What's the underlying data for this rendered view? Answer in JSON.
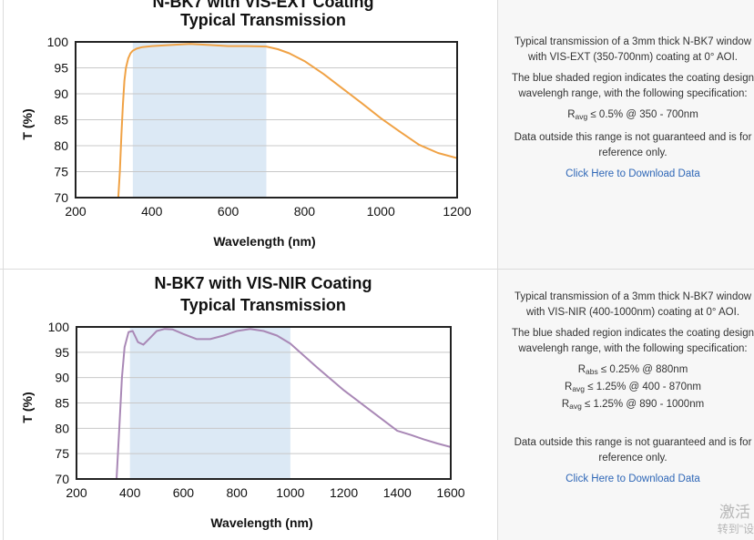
{
  "chart_data": [
    {
      "type": "line",
      "title_lines": [
        "N-BK7 with VIS-EXT Coating",
        "Typical Transmission"
      ],
      "xlabel": "Wavelength (nm)",
      "ylabel": "T (%)",
      "xlim": [
        200,
        1200
      ],
      "ylim": [
        70,
        100
      ],
      "xticks": [
        200,
        400,
        600,
        800,
        1000,
        1200
      ],
      "yticks": [
        70,
        75,
        80,
        85,
        90,
        95,
        100
      ],
      "shaded_range": [
        350,
        700
      ],
      "series": [
        {
          "name": "Transmission",
          "color": "#f0a245",
          "x": [
            312,
            316,
            320,
            324,
            328,
            332,
            338,
            344,
            350,
            360,
            375,
            400,
            450,
            500,
            550,
            600,
            650,
            700,
            730,
            760,
            800,
            850,
            900,
            950,
            1000,
            1050,
            1100,
            1150,
            1200
          ],
          "y": [
            70,
            75,
            82,
            88,
            92.5,
            95,
            96.8,
            97.8,
            98.3,
            98.7,
            99.0,
            99.2,
            99.4,
            99.6,
            99.4,
            99.2,
            99.2,
            99.1,
            98.6,
            97.8,
            96.3,
            93.8,
            91.0,
            88.2,
            85.3,
            82.7,
            80.2,
            78.6,
            77.6
          ]
        }
      ]
    },
    {
      "type": "line",
      "title_lines": [
        "N-BK7 with VIS-NIR Coating",
        "Typical Transmission"
      ],
      "xlabel": "Wavelength (nm)",
      "ylabel": "T (%)",
      "xlim": [
        200,
        1600
      ],
      "ylim": [
        70,
        100
      ],
      "xticks": [
        200,
        400,
        600,
        800,
        1000,
        1200,
        1400,
        1600
      ],
      "yticks": [
        70,
        75,
        80,
        85,
        90,
        95,
        100
      ],
      "shaded_range": [
        400,
        1000
      ],
      "series": [
        {
          "name": "Transmission",
          "color": "#a988b6",
          "x": [
            350,
            360,
            370,
            380,
            395,
            410,
            430,
            450,
            475,
            500,
            530,
            560,
            600,
            650,
            700,
            750,
            800,
            850,
            900,
            950,
            1000,
            1100,
            1200,
            1300,
            1400,
            1450,
            1500,
            1550,
            1600
          ],
          "y": [
            70,
            80,
            90,
            96,
            99.0,
            99.2,
            97.0,
            96.5,
            97.8,
            99.2,
            99.6,
            99.5,
            98.6,
            97.6,
            97.6,
            98.3,
            99.2,
            99.6,
            99.2,
            98.3,
            96.7,
            92.0,
            87.5,
            83.5,
            79.5,
            78.7,
            77.8,
            77.0,
            76.3
          ]
        }
      ]
    }
  ],
  "descriptions": [
    {
      "intro": "Typical transmission of a 3mm thick N-BK7 window with VIS-EXT (350-700nm) coating at 0° AOI.",
      "shading_note": "The blue shaded region indicates the coating design wavelengh range, with the following specification:",
      "specs": [
        {
          "symbol": "R",
          "sub": "avg",
          "value": " ≤ 0.5% @ 350 - 700nm"
        }
      ],
      "disclaimer": "Data outside this range is not guaranteed and is for reference only.",
      "download_label": "Click Here to Download Data"
    },
    {
      "intro": "Typical transmission of a 3mm thick N-BK7 window with VIS-NIR (400-1000nm) coating at 0° AOI.",
      "shading_note": "The blue shaded region indicates the coating design wavelengh range, with the following specification:",
      "specs": [
        {
          "symbol": "R",
          "sub": "abs",
          "value": " ≤ 0.25% @ 880nm"
        },
        {
          "symbol": "R",
          "sub": "avg",
          "value": " ≤ 1.25% @ 400 - 870nm"
        },
        {
          "symbol": "R",
          "sub": "avg",
          "value": " ≤ 1.25% @ 890 - 1000nm"
        }
      ],
      "disclaimer": "Data outside this range is not guaranteed and is for reference only.",
      "download_label": "Click Here to Download Data"
    }
  ],
  "overlay": {
    "line1": "激活",
    "line2": "转到\"设"
  },
  "colors": {
    "shade": "#dce9f5",
    "axis": "#222222",
    "grid": "#c8c8c8",
    "link": "#2f67b7"
  }
}
